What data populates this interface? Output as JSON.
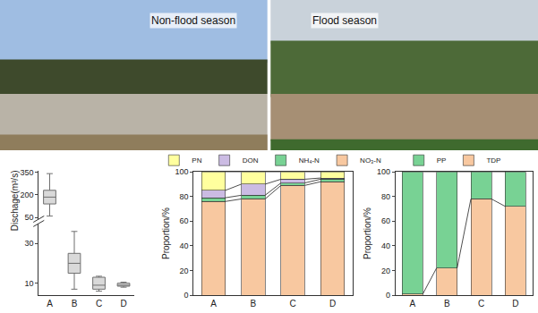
{
  "photos": [
    {
      "label": "Non-flood season"
    },
    {
      "label": "Flood season"
    }
  ],
  "chart_data": [
    {
      "type": "box",
      "ylabel": "Dischage(m³/s)",
      "categories": [
        "A",
        "B",
        "C",
        "D"
      ],
      "color": "#d9d9d9",
      "boxes": [
        {
          "category": "A",
          "min": 60,
          "q1": 140,
          "median": 185,
          "q3": 230,
          "max": 340,
          "axis": "y2"
        },
        {
          "category": "B",
          "min": 7,
          "q1": 15,
          "median": 20,
          "q3": 25,
          "max": 36
        },
        {
          "category": "C",
          "min": 6,
          "q1": 7,
          "median": 9,
          "q3": 13,
          "max": 13.5
        },
        {
          "category": "D",
          "min": 8,
          "q1": 8.5,
          "median": 9,
          "q3": 10,
          "max": 10.5
        }
      ],
      "ylim": [
        4,
        40
      ],
      "yticks": [
        10,
        30
      ],
      "y2lim": [
        40,
        360
      ],
      "y2ticks": [
        50,
        200,
        350
      ]
    },
    {
      "type": "bar",
      "stacked": true,
      "ylabel": "Proportion/%",
      "categories": [
        "A",
        "B",
        "C",
        "D"
      ],
      "series": [
        {
          "name": "NO₃-N",
          "color": "#f8c8a0",
          "values": [
            76,
            78,
            89,
            92
          ]
        },
        {
          "name": "NH₄-N",
          "color": "#78d294",
          "values": [
            3,
            3,
            2,
            2
          ]
        },
        {
          "name": "DON",
          "color": "#cbbbe3",
          "values": [
            6,
            9,
            3,
            1
          ]
        },
        {
          "name": "PN",
          "color": "#ffff9e",
          "values": [
            15,
            10,
            6,
            5
          ]
        }
      ],
      "ylim": [
        0,
        100
      ],
      "yticks": [
        0,
        20,
        40,
        60,
        80,
        100
      ],
      "legend": "top"
    },
    {
      "type": "bar",
      "stacked": true,
      "ylabel": "Proportion/%",
      "categories": [
        "A",
        "B",
        "C",
        "D"
      ],
      "series": [
        {
          "name": "TDP",
          "color": "#f8c8a0",
          "values": [
            1,
            22,
            78,
            72
          ]
        },
        {
          "name": "PP",
          "color": "#78d294",
          "values": [
            99,
            78,
            22,
            28
          ]
        }
      ],
      "ylim": [
        0,
        100
      ],
      "yticks": [
        0,
        20,
        40,
        60,
        80,
        100
      ],
      "legend": "top"
    }
  ]
}
